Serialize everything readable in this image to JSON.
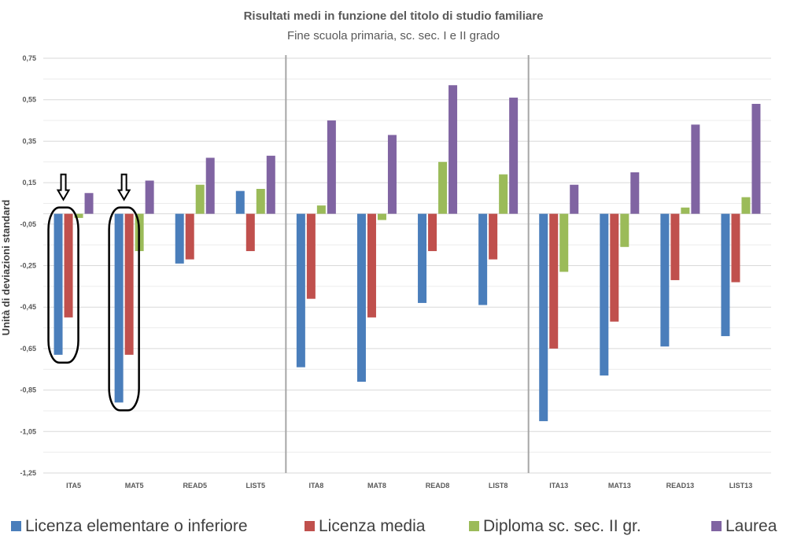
{
  "chart_data": {
    "type": "bar",
    "title": "Risultati medi in funzione del titolo di studio familiare",
    "subtitle": "Fine scuola primaria, sc. sec. I e II grado",
    "ylabel": "Unità di deviazioni standard",
    "xlabel": "",
    "ylim": [
      -1.25,
      0.75
    ],
    "yticks": [
      0.75,
      0.55,
      0.35,
      0.15,
      -0.05,
      -0.25,
      -0.45,
      -0.65,
      -0.85,
      -1.05,
      -1.25
    ],
    "ytick_labels": [
      "0,75",
      "0,55",
      "0,35",
      "0,15",
      "-0,05",
      "-0,25",
      "-0,45",
      "-0,65",
      "-0,85",
      "-1,05",
      "-1,25"
    ],
    "grid": true,
    "legend_position": "bottom",
    "categories": [
      "ITA5",
      "MAT5",
      "READ5",
      "LIST5",
      "ITA8",
      "MAT8",
      "READ8",
      "LIST8",
      "ITA13",
      "MAT13",
      "READ13",
      "LIST13"
    ],
    "group_separators_after": [
      3,
      7
    ],
    "series": [
      {
        "name": "Licenza elementare o inferiore",
        "color": "#4a7ebb",
        "values": [
          -0.68,
          -0.91,
          -0.24,
          0.11,
          -0.74,
          -0.81,
          -0.43,
          -0.44,
          -1.0,
          -0.78,
          -0.64,
          -0.59
        ]
      },
      {
        "name": "Licenza media",
        "color": "#c0504d",
        "values": [
          -0.5,
          -0.68,
          -0.22,
          -0.18,
          -0.41,
          -0.5,
          -0.18,
          -0.22,
          -0.65,
          -0.52,
          -0.32,
          -0.33
        ]
      },
      {
        "name": "Diploma sc. sec. II gr.",
        "color": "#9bbb59",
        "values": [
          -0.02,
          -0.18,
          0.14,
          0.12,
          0.04,
          -0.03,
          0.25,
          0.19,
          -0.28,
          -0.16,
          0.03,
          0.08
        ]
      },
      {
        "name": "Laurea",
        "color": "#8064a2",
        "values": [
          0.1,
          0.16,
          0.27,
          0.28,
          0.45,
          0.38,
          0.62,
          0.56,
          0.14,
          0.2,
          0.43,
          0.53
        ]
      }
    ],
    "annotations": [
      {
        "type": "ellipse-with-arrow",
        "category": "ITA5"
      },
      {
        "type": "ellipse-with-arrow",
        "category": "MAT5"
      }
    ]
  }
}
